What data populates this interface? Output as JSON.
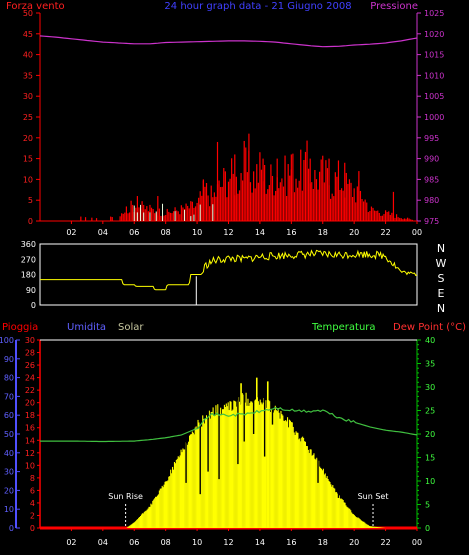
{
  "header": {
    "left_label": "Forza vento",
    "title": "24 hour graph data - 21 Giugno 2008",
    "right_label": "Pressione"
  },
  "colors": {
    "background": "#000000",
    "wind": "#ff0000",
    "wind_gust": "#ffffff",
    "pressure": "#cc33cc",
    "direction": "#ffff00",
    "rain": "#ff0000",
    "humidity": "#5050ff",
    "solar": "#ffff00",
    "temperature": "#40c040",
    "dew_point": "#ff3030",
    "axis_green": "#00c000",
    "plot_bg": "#000000"
  },
  "chart_data": [
    {
      "type": "area",
      "name": "wind-pressure",
      "x_ticks": [
        "02",
        "04",
        "06",
        "08",
        "10",
        "12",
        "14",
        "16",
        "18",
        "20",
        "22",
        "00"
      ],
      "left_axis": {
        "label": "Forza vento",
        "range": [
          0,
          50
        ],
        "ticks": [
          0,
          5,
          10,
          15,
          20,
          25,
          30,
          35,
          40,
          45,
          50
        ]
      },
      "right_axis": {
        "label": "Pressione",
        "range": [
          975,
          1025
        ],
        "ticks": [
          975,
          980,
          985,
          990,
          995,
          1000,
          1005,
          1010,
          1015,
          1020,
          1025
        ]
      },
      "pressure": {
        "hours": [
          0,
          1,
          2,
          3,
          4,
          5,
          6,
          7,
          8,
          9,
          10,
          11,
          12,
          13,
          14,
          15,
          16,
          17,
          18,
          19,
          20,
          21,
          22,
          23,
          24
        ],
        "values": [
          1019.5,
          1019.2,
          1018.8,
          1018.4,
          1018.0,
          1017.8,
          1017.6,
          1017.6,
          1017.9,
          1018.0,
          1018.1,
          1018.2,
          1018.3,
          1018.3,
          1018.2,
          1018.0,
          1017.6,
          1017.2,
          1016.9,
          1017.0,
          1017.3,
          1017.5,
          1017.8,
          1018.3,
          1019.0
        ]
      },
      "wind_speed": {
        "hours": [
          0,
          3,
          5,
          6,
          7,
          8,
          9,
          10,
          10.5,
          11,
          11.5,
          12,
          12.5,
          13,
          13.5,
          14,
          14.5,
          15,
          15.5,
          16,
          16.5,
          17,
          17.5,
          18,
          18.5,
          19,
          19.5,
          20,
          20.5,
          21,
          22,
          23,
          24
        ],
        "values": [
          0,
          1,
          2,
          4,
          3,
          2,
          3,
          4,
          8,
          6,
          9,
          12,
          10,
          14,
          11,
          13,
          10,
          12,
          11,
          13,
          12,
          14,
          11,
          12,
          10,
          11,
          9,
          8,
          7,
          3,
          2,
          1,
          0
        ]
      },
      "wind_gust_peaks": {
        "hours": [
          6.2,
          7.5,
          10.4,
          11.3,
          12.4,
          13.3,
          14.2,
          15.1,
          16.0,
          17.2,
          18.4,
          19.4,
          20.3,
          22.5
        ],
        "values": [
          6,
          6,
          10,
          19,
          16,
          21,
          15,
          15,
          16,
          15,
          15,
          14,
          12,
          7
        ]
      }
    },
    {
      "type": "line",
      "name": "wind-direction",
      "left_axis": {
        "range": [
          0,
          360
        ],
        "ticks": [
          0,
          90,
          180,
          270,
          360
        ]
      },
      "right_labels": [
        "N",
        "W",
        "S",
        "E",
        "N"
      ],
      "hours": [
        0,
        5.2,
        5.3,
        6.0,
        6.1,
        7.2,
        7.3,
        8.0,
        8.1,
        9.5,
        9.6,
        10.3,
        10.5,
        11,
        12,
        13,
        14,
        15,
        16,
        17,
        18,
        19,
        20,
        21,
        22,
        23,
        24
      ],
      "values": [
        150,
        150,
        120,
        120,
        110,
        110,
        90,
        90,
        120,
        120,
        180,
        180,
        230,
        260,
        275,
        270,
        285,
        290,
        295,
        300,
        300,
        295,
        300,
        300,
        290,
        195,
        180
      ]
    },
    {
      "type": "area",
      "name": "rain-humidity-temperature",
      "legend_left": [
        "Pioggia",
        "Umidita",
        "Solar"
      ],
      "legend_right": [
        "Temperatura",
        "Dew Point (°C)"
      ],
      "humidity_axis": {
        "range": [
          0,
          100
        ],
        "ticks": [
          0,
          10,
          20,
          30,
          40,
          50,
          60,
          70,
          80,
          90,
          100
        ]
      },
      "rain_axis": {
        "range": [
          0,
          30
        ],
        "ticks": [
          0,
          2,
          4,
          6,
          8,
          10,
          12,
          14,
          16,
          18,
          20,
          22,
          24,
          26,
          28,
          30
        ]
      },
      "temp_axis": {
        "range": [
          0,
          40
        ],
        "ticks": [
          0,
          5,
          10,
          15,
          20,
          25,
          30,
          35,
          40
        ]
      },
      "x_ticks": [
        "02",
        "04",
        "06",
        "08",
        "10",
        "12",
        "14",
        "16",
        "18",
        "20",
        "22",
        "00"
      ],
      "temperature": {
        "hours": [
          0,
          2,
          4,
          6,
          7,
          8,
          9,
          10,
          10.5,
          11,
          12,
          13,
          14,
          15,
          16,
          17,
          18,
          19,
          20,
          21,
          22,
          23,
          24
        ],
        "values": [
          18.5,
          18.5,
          18.4,
          18.5,
          18.8,
          19.2,
          19.8,
          21.2,
          23.5,
          24.2,
          24.0,
          24.2,
          24.8,
          25.5,
          25.0,
          24.8,
          25.0,
          23.5,
          22.5,
          21.5,
          20.8,
          20.4,
          19.8
        ]
      },
      "solar": {
        "hours": [
          5.5,
          6,
          7,
          8,
          9,
          10,
          11,
          12,
          13,
          14,
          15,
          16,
          17,
          18,
          19,
          20,
          21,
          22
        ],
        "values": [
          0,
          3,
          12,
          25,
          42,
          56,
          64,
          66,
          71,
          69,
          65,
          56,
          45,
          32,
          18,
          7,
          1,
          0
        ]
      },
      "solar_dips": {
        "hours": [
          9.3,
          10.2,
          10.7,
          11.4,
          12.6,
          13.0,
          13.6,
          14.3,
          14.8,
          17.7,
          19.0
        ],
        "values": [
          24,
          18,
          30,
          26,
          34,
          46,
          50,
          38,
          55,
          24,
          16
        ]
      },
      "solar_spikes": {
        "hours": [
          12.8,
          13.8,
          14.5
        ],
        "values": [
          77,
          80,
          78
        ]
      },
      "annotations": [
        {
          "text": "Sun Rise",
          "hour": 5.45
        },
        {
          "text": "Sun Set",
          "hour": 21.2
        }
      ]
    }
  ]
}
